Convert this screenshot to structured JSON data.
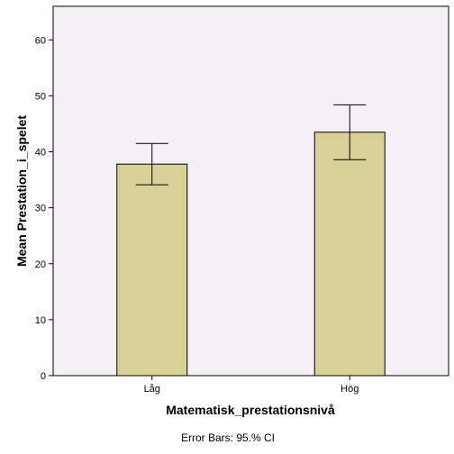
{
  "chart_data": {
    "type": "bar",
    "categories": [
      "Låg",
      "Hög"
    ],
    "values": [
      37.8,
      43.5
    ],
    "error_low": [
      34.1,
      38.6
    ],
    "error_high": [
      41.5,
      48.4
    ],
    "xlabel": "Matematisk_prestationsnivå",
    "ylabel": "Mean Prestation_i_spelet",
    "ylim": [
      0,
      66
    ],
    "yticks": [
      0,
      10,
      20,
      30,
      40,
      50,
      60
    ],
    "grid": false,
    "footnote": "Error Bars: 95.% CI",
    "colors": {
      "plot_background": "#f5f0f5",
      "bar_fill": "#d7d097",
      "bar_stroke": "#000000"
    }
  }
}
